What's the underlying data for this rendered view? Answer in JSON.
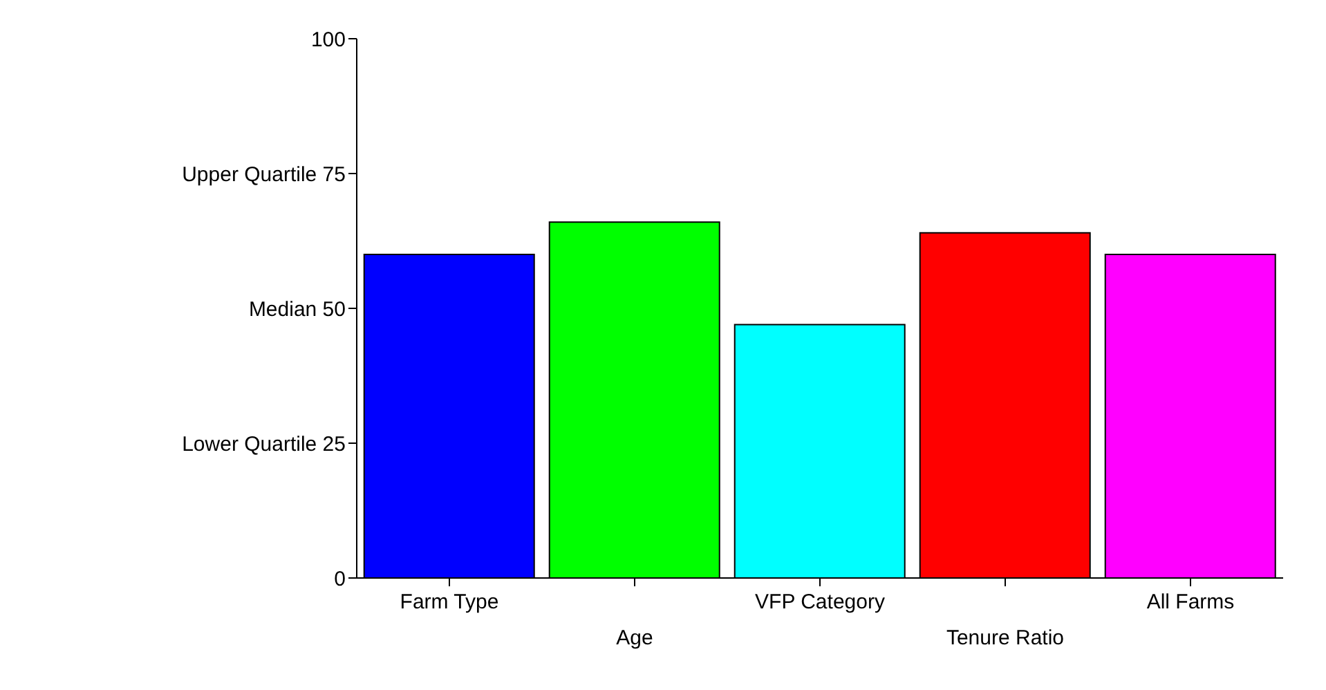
{
  "chart_data": {
    "type": "bar",
    "categories": [
      "Farm Type",
      "Age",
      "VFP Category",
      "Tenure Ratio",
      "All Farms"
    ],
    "values": [
      60,
      66,
      47,
      64,
      60
    ],
    "colors": [
      "#0000ff",
      "#00ff00",
      "#00ffff",
      "#ff0000",
      "#ff00ff"
    ],
    "ylim": [
      0,
      100
    ],
    "yticks": [
      0,
      {
        "value": 25,
        "label": "Lower Quartile 25"
      },
      {
        "value": 50,
        "label": "Median 50"
      },
      {
        "value": 75,
        "label": "Upper Quartile 75"
      },
      100
    ],
    "grid": false,
    "legend": false
  }
}
